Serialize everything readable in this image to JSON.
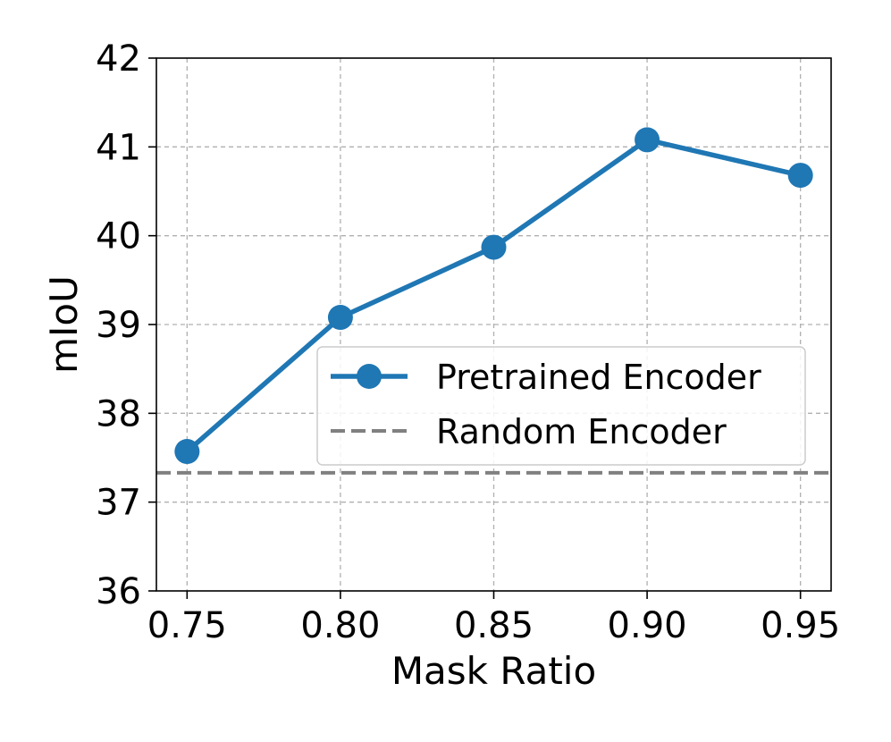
{
  "chart_data": {
    "type": "line",
    "title": "",
    "xlabel": "Mask Ratio",
    "ylabel": "mIoU",
    "x": [
      0.75,
      0.8,
      0.85,
      0.9,
      0.95
    ],
    "x_tick_labels": [
      "0.75",
      "0.80",
      "0.85",
      "0.90",
      "0.95"
    ],
    "y_ticks": [
      36,
      37,
      38,
      39,
      40,
      41,
      42
    ],
    "y_tick_labels": [
      "36",
      "37",
      "38",
      "39",
      "40",
      "41",
      "42"
    ],
    "xlim": [
      0.74,
      0.96
    ],
    "ylim": [
      36,
      42
    ],
    "grid": true,
    "legend_position": "center-right",
    "series": [
      {
        "name": "Pretrained Encoder",
        "style": "solid-line-with-markers",
        "color": "#1f77b4",
        "values": [
          37.57,
          39.08,
          39.87,
          41.08,
          40.68
        ]
      },
      {
        "name": "Random Encoder",
        "style": "dashed-horizontal-line",
        "color": "#808080",
        "value": 37.33
      }
    ]
  }
}
